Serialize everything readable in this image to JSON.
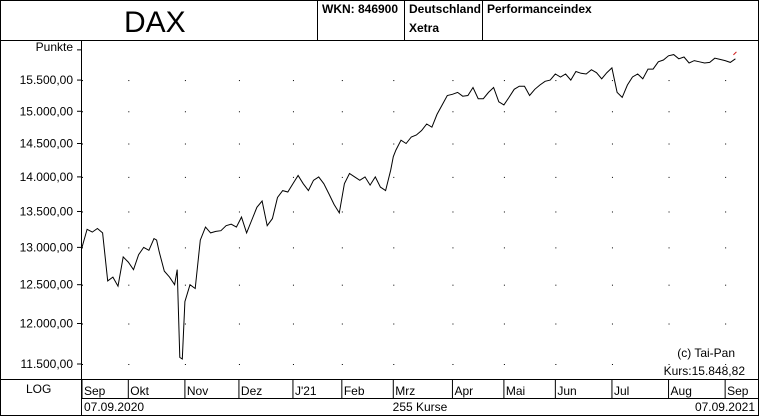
{
  "header": {
    "title": "DAX",
    "wkn": "WKN: 846900",
    "country": "Deutschland",
    "exchange": "Xetra",
    "index_type": "Performanceindex"
  },
  "footer": {
    "scale": "LOG",
    "start_date": "07.09.2020",
    "count": "255 Kurse",
    "end_date": "07.09.2021"
  },
  "annotations": {
    "copyright": "(c) Tai-Pan",
    "last_price": "Kurs:15.848,82"
  },
  "chart_data": {
    "type": "line",
    "title": "DAX",
    "ylabel": "Punkte",
    "yscale": "log",
    "ylim": [
      11320,
      16150
    ],
    "grid": "dotted",
    "yticks": [
      11500,
      12000,
      12500,
      13000,
      13500,
      14000,
      14500,
      15000,
      15500
    ],
    "ytick_labels": [
      "11.500,00",
      "12.000,00",
      "12.500,00",
      "13.000,00",
      "13.500,00",
      "14.000,00",
      "14.500,00",
      "15.000,00",
      "15.500,00"
    ],
    "month_labels": [
      "Sep",
      "Okt",
      "Nov",
      "Dez",
      "J'21",
      "Feb",
      "Mrz",
      "Apr",
      "Mai",
      "Jun",
      "Jul",
      "Aug",
      "Sep"
    ],
    "month_starts": [
      0,
      18,
      40,
      61,
      82,
      101,
      121,
      144,
      164,
      184,
      206,
      228,
      250
    ],
    "series": [
      {
        "name": "",
        "color": "#000000",
        "x": [
          0,
          2,
          4,
          6,
          8,
          10,
          12,
          14,
          16,
          18,
          20,
          22,
          24,
          26,
          28,
          29,
          30,
          32,
          34,
          36,
          37,
          38,
          39,
          40,
          42,
          44,
          46,
          48,
          50,
          52,
          54,
          56,
          58,
          60,
          62,
          64,
          66,
          68,
          70,
          72,
          74,
          76,
          78,
          80,
          82,
          84,
          86,
          88,
          90,
          92,
          94,
          96,
          98,
          100,
          102,
          104,
          106,
          108,
          110,
          112,
          114,
          116,
          118,
          120,
          121,
          122,
          124,
          126,
          128,
          130,
          132,
          134,
          136,
          138,
          140,
          142,
          144,
          146,
          148,
          150,
          152,
          154,
          156,
          158,
          160,
          162,
          164,
          166,
          168,
          170,
          172,
          174,
          176,
          178,
          180,
          182,
          184,
          186,
          188,
          190,
          192,
          194,
          196,
          198,
          200,
          202,
          204,
          206,
          208,
          210,
          212,
          214,
          216,
          218,
          220,
          222,
          224,
          226,
          228,
          230,
          232,
          234,
          236,
          238,
          240,
          242,
          244,
          246,
          248,
          250,
          252,
          254
        ],
        "values": [
          13000,
          13250,
          13210,
          13260,
          13200,
          12550,
          12600,
          12480,
          12870,
          12800,
          12700,
          12900,
          13000,
          12960,
          13120,
          13100,
          12940,
          12680,
          12600,
          12500,
          12700,
          11580,
          11560,
          12280,
          12500,
          12450,
          13100,
          13280,
          13200,
          13220,
          13230,
          13300,
          13320,
          13280,
          13420,
          13200,
          13380,
          13560,
          13650,
          13300,
          13400,
          13700,
          13800,
          13780,
          13900,
          14020,
          13900,
          13800,
          13950,
          14000,
          13900,
          13750,
          13600,
          13480,
          13900,
          14050,
          14000,
          13950,
          14000,
          13880,
          14000,
          13850,
          13800,
          14100,
          14300,
          14400,
          14550,
          14500,
          14600,
          14630,
          14700,
          14800,
          14750,
          14950,
          15100,
          15250,
          15270,
          15300,
          15240,
          15250,
          15380,
          15200,
          15200,
          15300,
          15380,
          15150,
          15100,
          15220,
          15350,
          15400,
          15400,
          15250,
          15350,
          15420,
          15480,
          15500,
          15600,
          15550,
          15600,
          15500,
          15640,
          15610,
          15600,
          15670,
          15620,
          15520,
          15620,
          15700,
          15300,
          15220,
          15420,
          15550,
          15600,
          15520,
          15680,
          15680,
          15800,
          15830,
          15900,
          15920,
          15850,
          15880,
          15780,
          15820,
          15800,
          15780,
          15790,
          15860,
          15840,
          15820,
          15790,
          15850
        ]
      }
    ]
  }
}
